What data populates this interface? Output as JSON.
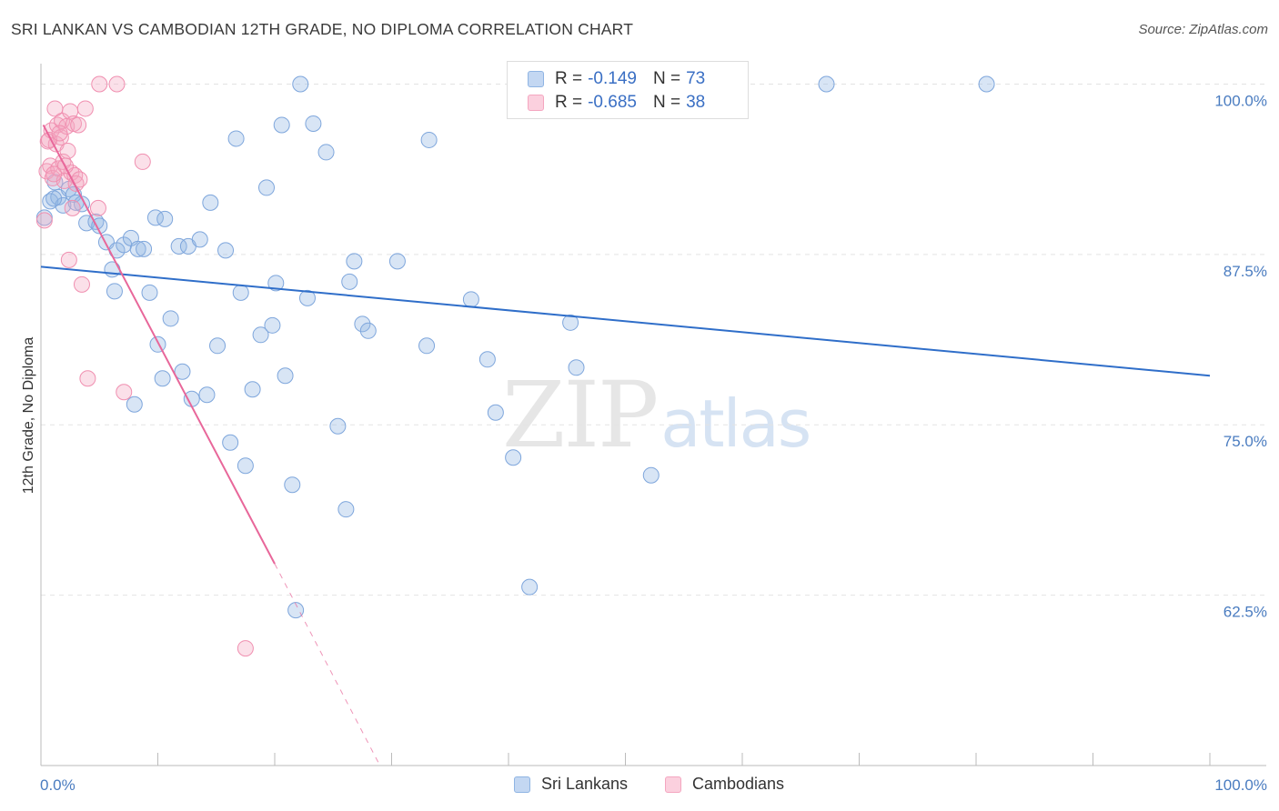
{
  "title": "SRI LANKAN VS CAMBODIAN 12TH GRADE, NO DIPLOMA CORRELATION CHART",
  "source": "Source: ZipAtlas.com",
  "watermark": {
    "zip": "ZIP",
    "atlas": "atlas"
  },
  "legend": {
    "rows": [
      {
        "r_label": "R =",
        "r_value": "-0.149",
        "n_label": "N =",
        "n_value": "73"
      },
      {
        "r_label": "R =",
        "r_value": "-0.685",
        "n_label": "N =",
        "n_value": "38"
      }
    ]
  },
  "chart_data": {
    "type": "scatter",
    "ylabel": "12th Grade, No Diploma",
    "xlim": [
      0,
      100
    ],
    "ylim": [
      50,
      101.5
    ],
    "x_tick_labels": [
      "0.0%",
      "100.0%"
    ],
    "y_ticks": [
      62.5,
      75.0,
      87.5,
      100.0
    ],
    "y_tick_labels": [
      "62.5%",
      "75.0%",
      "87.5%",
      "100.0%"
    ],
    "grid": true,
    "colors": {
      "blue": "#8fb4e3",
      "blue_line": "#2f6ec9",
      "pink": "#f4a6c0",
      "pink_line": "#e8679a"
    },
    "series": [
      {
        "name": "Sri Lankans",
        "color": "#8fb4e3",
        "points": [
          [
            0.3,
            90.2
          ],
          [
            0.8,
            91.4
          ],
          [
            1.2,
            92.8
          ],
          [
            1.5,
            91.7
          ],
          [
            1.9,
            91.1
          ],
          [
            2.4,
            92.3
          ],
          [
            2.8,
            91.9
          ],
          [
            3.5,
            91.2
          ],
          [
            3.9,
            89.8
          ],
          [
            4.7,
            89.9
          ],
          [
            5.6,
            88.4
          ],
          [
            6.1,
            86.4
          ],
          [
            6.5,
            87.8
          ],
          [
            6.3,
            84.8
          ],
          [
            7.1,
            88.2
          ],
          [
            7.7,
            88.7
          ],
          [
            8.3,
            87.9
          ],
          [
            8.8,
            87.9
          ],
          [
            8.0,
            76.5
          ],
          [
            9.3,
            84.7
          ],
          [
            9.8,
            90.2
          ],
          [
            10.0,
            80.9
          ],
          [
            10.4,
            78.4
          ],
          [
            10.6,
            90.1
          ],
          [
            11.1,
            82.8
          ],
          [
            11.8,
            88.1
          ],
          [
            12.1,
            78.9
          ],
          [
            12.6,
            88.1
          ],
          [
            12.9,
            76.9
          ],
          [
            13.6,
            88.6
          ],
          [
            14.2,
            77.2
          ],
          [
            14.5,
            91.3
          ],
          [
            15.1,
            80.8
          ],
          [
            15.8,
            87.8
          ],
          [
            16.2,
            73.7
          ],
          [
            16.7,
            96.0
          ],
          [
            17.1,
            84.7
          ],
          [
            17.5,
            72.0
          ],
          [
            18.1,
            77.6
          ],
          [
            18.8,
            81.6
          ],
          [
            19.3,
            92.4
          ],
          [
            19.8,
            82.3
          ],
          [
            20.1,
            85.4
          ],
          [
            20.6,
            97.0
          ],
          [
            20.9,
            78.6
          ],
          [
            21.5,
            70.6
          ],
          [
            21.8,
            61.4
          ],
          [
            22.2,
            100.0
          ],
          [
            22.8,
            84.3
          ],
          [
            23.3,
            97.1
          ],
          [
            24.4,
            95.0
          ],
          [
            25.4,
            74.9
          ],
          [
            26.1,
            68.8
          ],
          [
            26.4,
            85.5
          ],
          [
            26.8,
            87.0
          ],
          [
            27.5,
            82.4
          ],
          [
            28.0,
            81.9
          ],
          [
            30.5,
            87.0
          ],
          [
            33.0,
            80.8
          ],
          [
            33.2,
            95.9
          ],
          [
            36.8,
            84.2
          ],
          [
            38.2,
            79.8
          ],
          [
            38.9,
            75.9
          ],
          [
            40.4,
            72.6
          ],
          [
            41.8,
            63.1
          ],
          [
            45.3,
            82.5
          ],
          [
            45.8,
            79.2
          ],
          [
            52.2,
            71.3
          ],
          [
            67.2,
            100.0
          ],
          [
            80.9,
            100.0
          ],
          [
            1.1,
            91.6
          ],
          [
            3.0,
            91.3
          ],
          [
            5.0,
            89.6
          ]
        ],
        "trend": [
          [
            0,
            86.6
          ],
          [
            100,
            78.6
          ]
        ]
      },
      {
        "name": "Cambodians",
        "color": "#f4a6c0",
        "points": [
          [
            0.3,
            90.0
          ],
          [
            0.5,
            93.6
          ],
          [
            0.6,
            95.8
          ],
          [
            0.8,
            94.0
          ],
          [
            0.9,
            96.6
          ],
          [
            1.0,
            93.1
          ],
          [
            1.2,
            98.2
          ],
          [
            1.3,
            95.6
          ],
          [
            1.4,
            97.0
          ],
          [
            1.5,
            93.8
          ],
          [
            1.7,
            96.1
          ],
          [
            1.8,
            97.3
          ],
          [
            1.9,
            94.3
          ],
          [
            2.0,
            92.9
          ],
          [
            2.2,
            96.9
          ],
          [
            2.3,
            95.1
          ],
          [
            2.5,
            98.0
          ],
          [
            2.6,
            93.5
          ],
          [
            2.7,
            90.9
          ],
          [
            2.8,
            97.1
          ],
          [
            2.9,
            93.3
          ],
          [
            3.0,
            92.7
          ],
          [
            3.2,
            97.0
          ],
          [
            3.3,
            93.0
          ],
          [
            3.5,
            85.3
          ],
          [
            3.8,
            98.2
          ],
          [
            4.0,
            78.4
          ],
          [
            4.9,
            90.9
          ],
          [
            5.0,
            100.0
          ],
          [
            6.5,
            100.0
          ],
          [
            7.1,
            77.4
          ],
          [
            8.7,
            94.3
          ],
          [
            17.5,
            58.6
          ],
          [
            2.4,
            87.1
          ],
          [
            0.7,
            95.9
          ],
          [
            1.6,
            96.4
          ],
          [
            2.1,
            94.0
          ],
          [
            1.1,
            93.4
          ]
        ],
        "trend": [
          [
            0.2,
            97.0
          ],
          [
            20.0,
            64.8
          ]
        ],
        "trend_extension": [
          [
            20.0,
            64.8
          ],
          [
            29.0,
            50.0
          ]
        ]
      }
    ]
  },
  "bottom_legend": [
    {
      "label": "Sri Lankans"
    },
    {
      "label": "Cambodians"
    }
  ]
}
